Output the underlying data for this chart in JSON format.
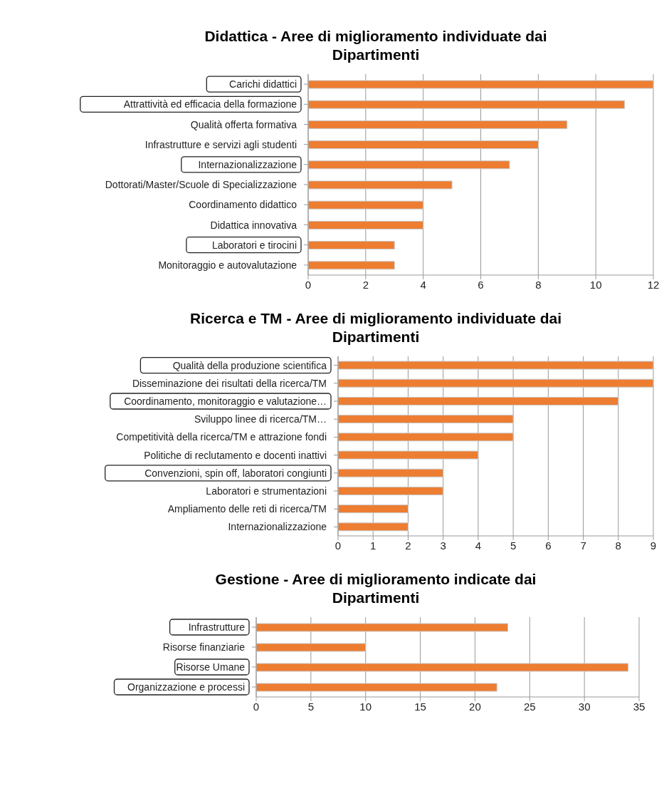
{
  "chart_data": [
    {
      "type": "bar",
      "orientation": "horizontal",
      "title": "Didattica - Aree di miglioramento individuate dai Dipartimenti",
      "categories": [
        "Carichi didattici",
        "Attrattività ed efficacia della formazione",
        "Qualità offerta formativa",
        "Infrastrutture e servizi agli studenti",
        "Internazionalizzazione",
        "Dottorati/Master/Scuole di Specializzazione",
        "Coordinamento didattico",
        "Didattica innovativa",
        "Laboratori e tirocini",
        "Monitoraggio e autovalutazione"
      ],
      "values": [
        12,
        11,
        9,
        8,
        7,
        5,
        4,
        4,
        3,
        3
      ],
      "color": "#ed7d31",
      "xlim": [
        0,
        12
      ],
      "xticks": [
        0,
        2,
        4,
        6,
        8,
        10,
        12
      ],
      "grid": "x"
    },
    {
      "type": "bar",
      "orientation": "horizontal",
      "title": "Ricerca e TM - Aree di miglioramento individuate dai Dipartimenti",
      "categories": [
        "Qualità della produzione scientifica",
        "Disseminazione dei risultati della ricerca/TM",
        "Coordinamento, monitoraggio e valutazione…",
        "Sviluppo linee di ricerca/TM…",
        "Competitività della ricerca/TM e attrazione fondi",
        "Politiche di reclutamento e docenti inattivi",
        "Convenzioni, spin off, laboratori congiunti",
        "Laboratori e strumentazioni",
        "Ampliamento delle reti di ricerca/TM",
        "Internazionalizzazione"
      ],
      "values": [
        9,
        9,
        8,
        5,
        5,
        4,
        3,
        3,
        2,
        2
      ],
      "color": "#ed7d31",
      "xlim": [
        0,
        9
      ],
      "xticks": [
        0,
        1,
        2,
        3,
        4,
        5,
        6,
        7,
        8,
        9
      ],
      "grid": "x"
    },
    {
      "type": "bar",
      "orientation": "horizontal",
      "title": "Gestione - Aree di miglioramento indicate dai Dipartimenti",
      "categories": [
        "Infrastrutture",
        "Risorse finanziarie",
        "Risorse Umane",
        "Organizzazione e processi"
      ],
      "values": [
        23,
        10,
        34,
        22
      ],
      "color": "#ed7d31",
      "xlim": [
        0,
        35
      ],
      "xticks": [
        0,
        5,
        10,
        15,
        20,
        25,
        30,
        35
      ],
      "grid": "x"
    }
  ]
}
